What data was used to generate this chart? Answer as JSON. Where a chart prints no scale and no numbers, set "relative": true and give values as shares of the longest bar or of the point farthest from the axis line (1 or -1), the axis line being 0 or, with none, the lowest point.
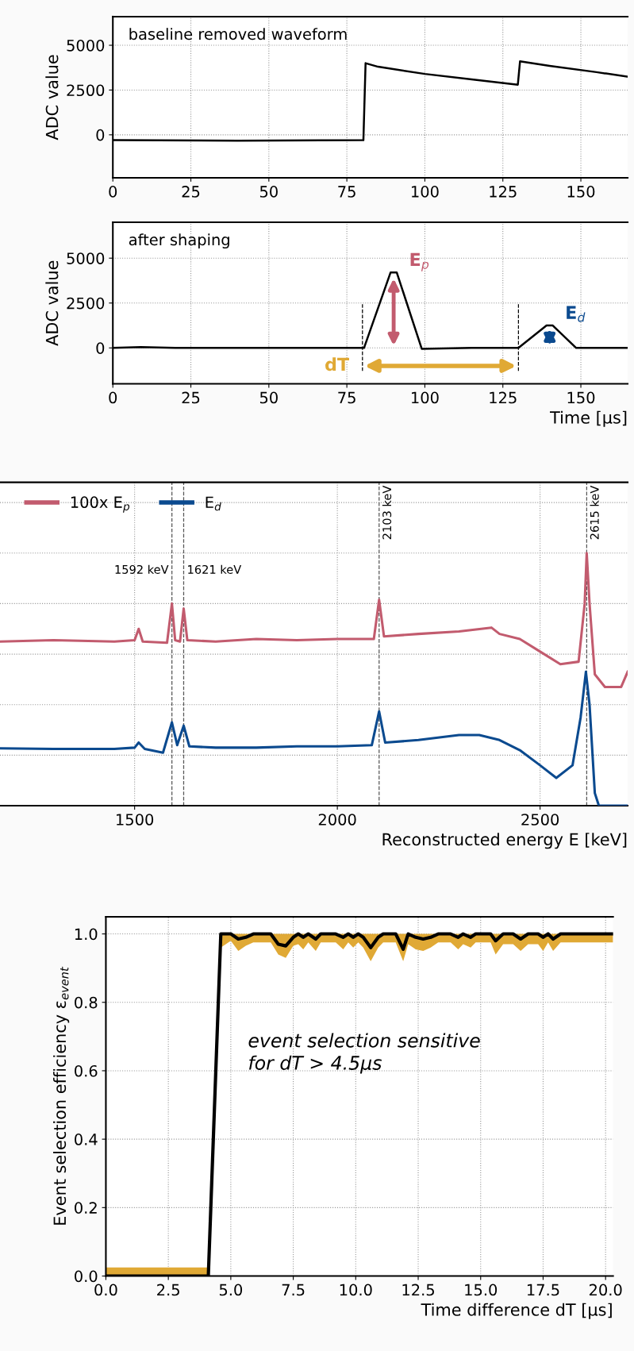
{
  "chart_data": [
    {
      "type": "line",
      "title": "baseline removed waveform",
      "ylabel": "ADC value",
      "xlim": [
        0,
        165
      ],
      "xticks": [
        0,
        25,
        50,
        75,
        100,
        125,
        150
      ],
      "ylim": [
        -2400,
        6600
      ],
      "yticks": [
        0,
        2500,
        5000
      ],
      "grid": true,
      "series": [
        {
          "color": "#000000",
          "x": [
            0,
            40,
            80.3,
            81,
            85,
            100,
            115,
            129.8,
            130.5,
            140,
            155,
            165
          ],
          "values": [
            -300,
            -330,
            -300,
            4000,
            3800,
            3400,
            3100,
            2800,
            4100,
            3850,
            3500,
            3250
          ]
        }
      ]
    },
    {
      "type": "line",
      "title": "after shaping",
      "ylabel": "ADC value",
      "xlabel": "Time [μs]",
      "xlim": [
        0,
        165
      ],
      "xticks": [
        0,
        25,
        50,
        75,
        100,
        125,
        150
      ],
      "ylim": [
        -2000,
        7000
      ],
      "yticks": [
        0,
        2500,
        5000
      ],
      "grid": true,
      "series": [
        {
          "color": "#000000",
          "x": [
            0,
            9,
            20,
            80.5,
            89,
            91,
            99,
            115,
            130,
            139,
            141,
            148.5,
            165
          ],
          "values": [
            0,
            50,
            0,
            0,
            4200,
            4200,
            -50,
            0,
            0,
            1250,
            1250,
            0,
            0
          ]
        }
      ],
      "ref_lines": [
        {
          "axis": "x",
          "value": 80,
          "line_style": "dashed",
          "color": "#000000"
        },
        {
          "axis": "x",
          "value": 130,
          "line_style": "dashed",
          "color": "#000000"
        }
      ],
      "annotations": [
        {
          "text": "E$_{p}$",
          "x": 90,
          "y": 4200
        },
        {
          "text": "E$_{d}$",
          "x": 140,
          "y": 1250
        },
        {
          "text": "dT",
          "x": 80,
          "y": -1000
        }
      ]
    },
    {
      "type": "line",
      "relative": true,
      "xlabel": "Reconstructed energy E [keV]",
      "xlim": [
        1168,
        2716
      ],
      "xticks": [
        1500,
        2000,
        2500
      ],
      "grid": true,
      "legend": "top left",
      "tick_labels": "x",
      "series": [
        {
          "name": "100x E$_{p}$",
          "color": "#c25b6e",
          "x": [
            1168,
            1300,
            1450,
            1500,
            1510,
            1520,
            1580,
            1592,
            1600,
            1612,
            1621,
            1630,
            1700,
            1800,
            1900,
            2000,
            2090,
            2103,
            2115,
            2200,
            2300,
            2380,
            2400,
            2450,
            2500,
            2550,
            2595,
            2610,
            2615,
            2622,
            2635,
            2660,
            2700,
            2716
          ],
          "values": [
            0.65,
            0.655,
            0.65,
            0.655,
            0.7,
            0.65,
            0.645,
            0.8,
            0.655,
            0.65,
            0.78,
            0.655,
            0.65,
            0.66,
            0.655,
            0.66,
            0.66,
            0.815,
            0.67,
            0.68,
            0.69,
            0.705,
            0.68,
            0.66,
            0.61,
            0.56,
            0.57,
            0.8,
            1.0,
            0.8,
            0.52,
            0.47,
            0.47,
            0.53
          ]
        },
        {
          "name": "E$_{d}$",
          "color": "#0b4a8f",
          "x": [
            1168,
            1300,
            1450,
            1500,
            1510,
            1525,
            1570,
            1592,
            1605,
            1621,
            1635,
            1700,
            1800,
            1900,
            2000,
            2085,
            2103,
            2118,
            2200,
            2300,
            2350,
            2400,
            2450,
            2500,
            2540,
            2580,
            2600,
            2613,
            2622,
            2635,
            2645,
            2716
          ],
          "values": [
            0.227,
            0.225,
            0.225,
            0.23,
            0.25,
            0.225,
            0.21,
            0.33,
            0.24,
            0.317,
            0.235,
            0.23,
            0.23,
            0.235,
            0.235,
            0.24,
            0.373,
            0.25,
            0.26,
            0.28,
            0.28,
            0.26,
            0.22,
            0.16,
            0.11,
            0.16,
            0.35,
            0.53,
            0.4,
            0.05,
            0.0,
            0.0
          ]
        }
      ],
      "ref_lines": [
        {
          "axis": "x",
          "value": 1592,
          "label": "1592 keV",
          "line_style": "dashed",
          "color": "#555555"
        },
        {
          "axis": "x",
          "value": 1621,
          "label": "1621 keV",
          "line_style": "dashed",
          "color": "#555555"
        },
        {
          "axis": "x",
          "value": 2103,
          "label": "2103 keV",
          "line_style": "dashed",
          "color": "#555555"
        },
        {
          "axis": "x",
          "value": 2615,
          "label": "2615 keV",
          "line_style": "dashed",
          "color": "#555555"
        }
      ]
    },
    {
      "type": "line",
      "xlabel": "Time difference dT [μs]",
      "ylabel": "Event selection efficiency ε$_{event}$",
      "xlim": [
        0,
        20.3
      ],
      "xticks": [
        {
          "value": 0,
          "label": "0.0"
        },
        {
          "value": 2.5,
          "label": "2.5"
        },
        {
          "value": 5,
          "label": "5.0"
        },
        {
          "value": 7.5,
          "label": "7.5"
        },
        {
          "value": 10,
          "label": "10.0"
        },
        {
          "value": 12.5,
          "label": "12.5"
        },
        {
          "value": 15,
          "label": "15.0"
        },
        {
          "value": 17.5,
          "label": "17.5"
        },
        {
          "value": 20,
          "label": "20.0"
        }
      ],
      "ylim": [
        0,
        1.05
      ],
      "yticks": [
        {
          "value": 0,
          "label": "0.0"
        },
        {
          "value": 0.2,
          "label": "0.2"
        },
        {
          "value": 0.4,
          "label": "0.4"
        },
        {
          "value": 0.6,
          "label": "0.6"
        },
        {
          "value": 0.8,
          "label": "0.8"
        },
        {
          "value": 1,
          "label": "1.0"
        }
      ],
      "grid": true,
      "annotations": [
        "event selection sensitive\nfor dT > 4.5μs"
      ],
      "series": [
        {
          "color": "#000000",
          "x": [
            0,
            4.1,
            4.6,
            5.0,
            5.3,
            5.6,
            5.9,
            6.6,
            6.9,
            7.2,
            7.5,
            7.7,
            7.9,
            8.1,
            8.4,
            8.6,
            9.2,
            9.5,
            9.7,
            9.9,
            10.1,
            10.3,
            10.6,
            10.9,
            11.1,
            11.6,
            11.9,
            12.1,
            12.4,
            12.7,
            13.0,
            13.3,
            13.8,
            14.1,
            14.3,
            14.6,
            14.8,
            15.4,
            15.6,
            15.9,
            16.3,
            16.6,
            16.9,
            17.3,
            17.5,
            17.7,
            17.9,
            18.2,
            20.3
          ],
          "values": [
            0,
            0,
            1.0,
            1.0,
            0.985,
            0.99,
            1.0,
            1.0,
            0.97,
            0.965,
            0.99,
            1.0,
            0.99,
            1.0,
            0.985,
            1.0,
            1.0,
            0.99,
            1.0,
            0.99,
            1.0,
            0.99,
            0.96,
            0.99,
            1.0,
            1.0,
            0.955,
            1.0,
            0.99,
            0.985,
            0.99,
            1.0,
            1.0,
            0.99,
            1.0,
            0.99,
            1.0,
            1.0,
            0.98,
            1.0,
            1.0,
            0.985,
            1.0,
            1.0,
            0.99,
            1.0,
            0.985,
            1.0,
            1.0
          ],
          "lower": [
            0,
            0,
            0.96,
            0.98,
            0.95,
            0.965,
            0.975,
            0.975,
            0.94,
            0.93,
            0.965,
            0.97,
            0.955,
            0.975,
            0.95,
            0.975,
            0.975,
            0.955,
            0.975,
            0.96,
            0.975,
            0.96,
            0.92,
            0.96,
            0.975,
            0.975,
            0.92,
            0.97,
            0.955,
            0.95,
            0.96,
            0.975,
            0.975,
            0.955,
            0.97,
            0.96,
            0.975,
            0.975,
            0.94,
            0.97,
            0.97,
            0.95,
            0.97,
            0.97,
            0.95,
            0.975,
            0.95,
            0.975,
            0.975
          ],
          "upper": [
            0.025,
            0.025,
            1.0,
            1.0,
            1.0,
            1.0,
            1.0,
            1.0,
            1.0,
            1.0,
            1.0,
            1.0,
            1.0,
            1.0,
            1.0,
            1.0,
            1.0,
            1.0,
            1.0,
            1.0,
            1.0,
            1.0,
            1.0,
            1.0,
            1.0,
            1.0,
            1.0,
            1.0,
            1.0,
            1.0,
            1.0,
            1.0,
            1.0,
            1.0,
            1.0,
            1.0,
            1.0,
            1.0,
            1.0,
            1.0,
            1.0,
            1.0,
            1.0,
            1.0,
            1.0,
            1.0,
            1.0,
            1.0,
            1.0
          ]
        }
      ]
    }
  ]
}
